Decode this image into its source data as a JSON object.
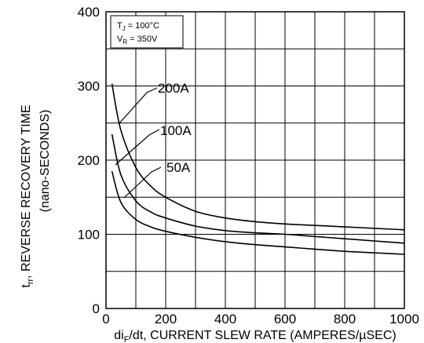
{
  "chart_data": {
    "type": "line",
    "title": "",
    "xlabel": {
      "prefix": "di",
      "sub": "F",
      "suffix": "/dt, CURRENT SLEW RATE (AMPERES/µSEC)"
    },
    "ylabel": {
      "prefix": "t",
      "sub": "rr",
      "suffix": ", REVERSE RECOVERY TIME",
      "line2": "(nano-SECONDS)"
    },
    "xlim": [
      0,
      1000
    ],
    "ylim": [
      0,
      400
    ],
    "x_ticks": [
      0,
      200,
      400,
      600,
      800,
      1000
    ],
    "y_ticks": [
      0,
      100,
      200,
      300,
      400
    ],
    "grid": true,
    "conditions": {
      "line1_prefix": "T",
      "line1_sub": "J",
      "line1_suffix": " = 100°C",
      "line2_prefix": "V",
      "line2_sub": "R",
      "line2_suffix": " = 350V"
    },
    "series": [
      {
        "name": "200A",
        "x": [
          20,
          50,
          100,
          150,
          200,
          300,
          400,
          500,
          600,
          700,
          800,
          900,
          1000
        ],
        "y": [
          303,
          240,
          190,
          165,
          150,
          131,
          122,
          117,
          114,
          112,
          110,
          108,
          106
        ]
      },
      {
        "name": "100A",
        "x": [
          20,
          50,
          100,
          150,
          200,
          300,
          400,
          500,
          600,
          700,
          800,
          900,
          1000
        ],
        "y": [
          235,
          180,
          145,
          130,
          122,
          111,
          105,
          102,
          100,
          97,
          94,
          91,
          88
        ]
      },
      {
        "name": "50A",
        "x": [
          20,
          50,
          100,
          150,
          200,
          300,
          400,
          500,
          600,
          700,
          800,
          900,
          1000
        ],
        "y": [
          185,
          143,
          120,
          110,
          104,
          96,
          90,
          86,
          83,
          80,
          77,
          75,
          73
        ]
      }
    ]
  }
}
